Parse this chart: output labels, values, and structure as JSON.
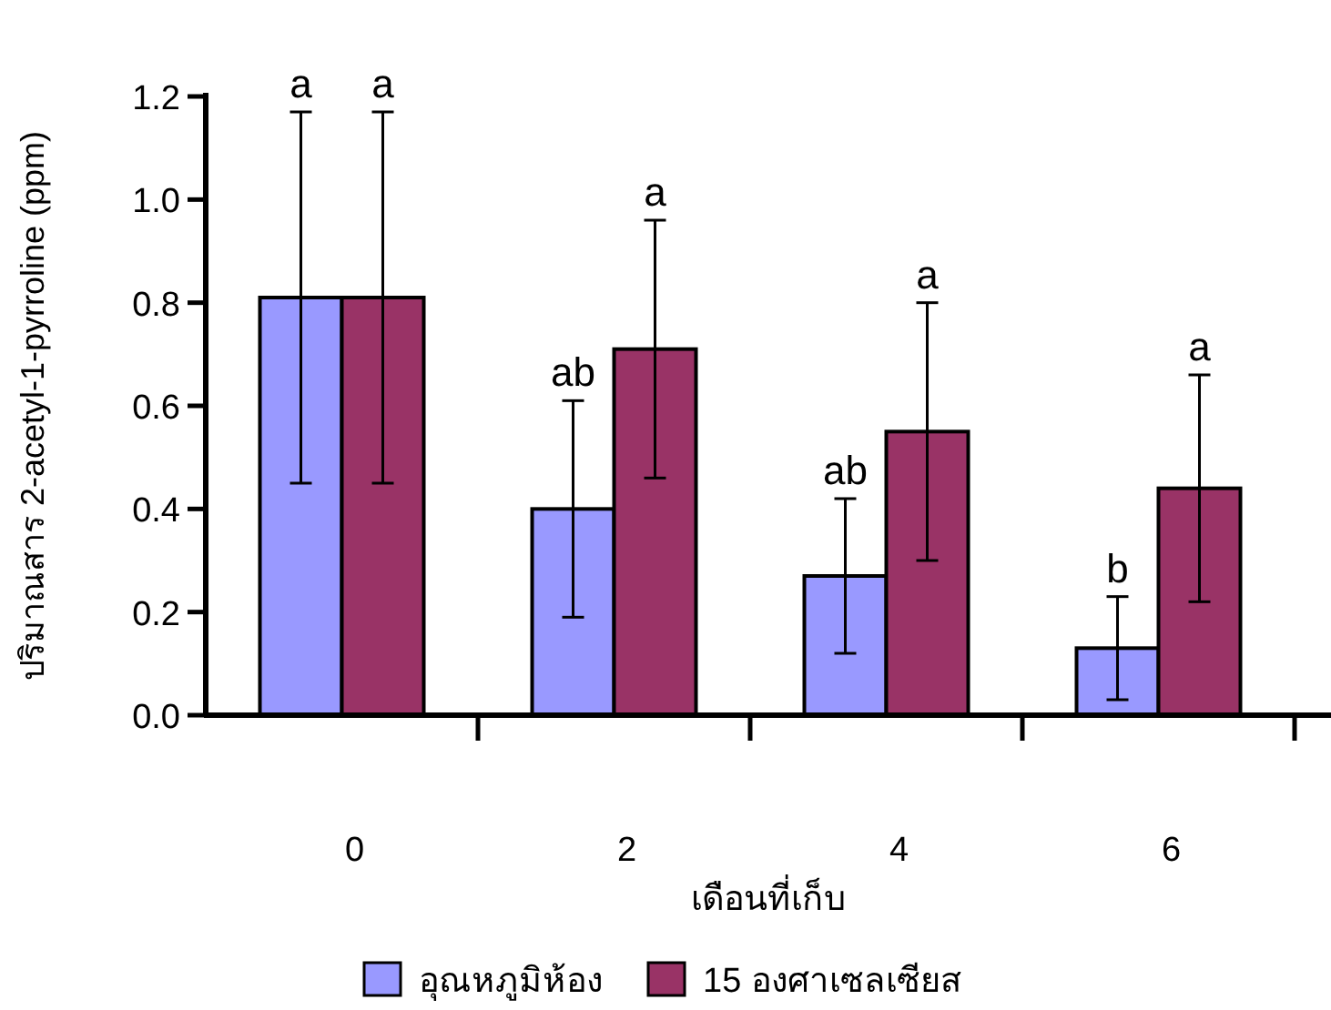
{
  "chart_data": {
    "type": "bar",
    "xlabel": "เดือนที่เก็บ",
    "ylabel": "ปริมาณสาร 2-acetyl-1-pyrroline (ppm)",
    "categories": [
      "0",
      "2",
      "4",
      "6"
    ],
    "series": [
      {
        "name": "อุณหภูมิห้อง",
        "color": "#9999ff",
        "values": [
          0.81,
          0.4,
          0.27,
          0.13
        ],
        "errors": [
          0.36,
          0.21,
          0.15,
          0.1
        ]
      },
      {
        "name": "15 องศาเซลเซียส",
        "color": "#993366",
        "values": [
          0.81,
          0.71,
          0.55,
          0.44
        ],
        "errors": [
          0.36,
          0.25,
          0.25,
          0.22
        ]
      }
    ],
    "annotations": [
      "a",
      "ab",
      "ab",
      "b",
      "a",
      "a",
      "a",
      "a"
    ],
    "ylim": [
      0,
      1.2
    ],
    "yticks": [
      {
        "value": 0,
        "label": "0.0"
      },
      {
        "value": 0.2,
        "label": "0.2"
      },
      {
        "value": 0.4,
        "label": "0.4"
      },
      {
        "value": 0.6,
        "label": "0.6"
      },
      {
        "value": 0.8,
        "label": "0.8"
      },
      {
        "value": 1,
        "label": "1.0"
      },
      {
        "value": 1.2,
        "label": "1.2"
      }
    ],
    "grid": false,
    "legend": "bottom"
  }
}
